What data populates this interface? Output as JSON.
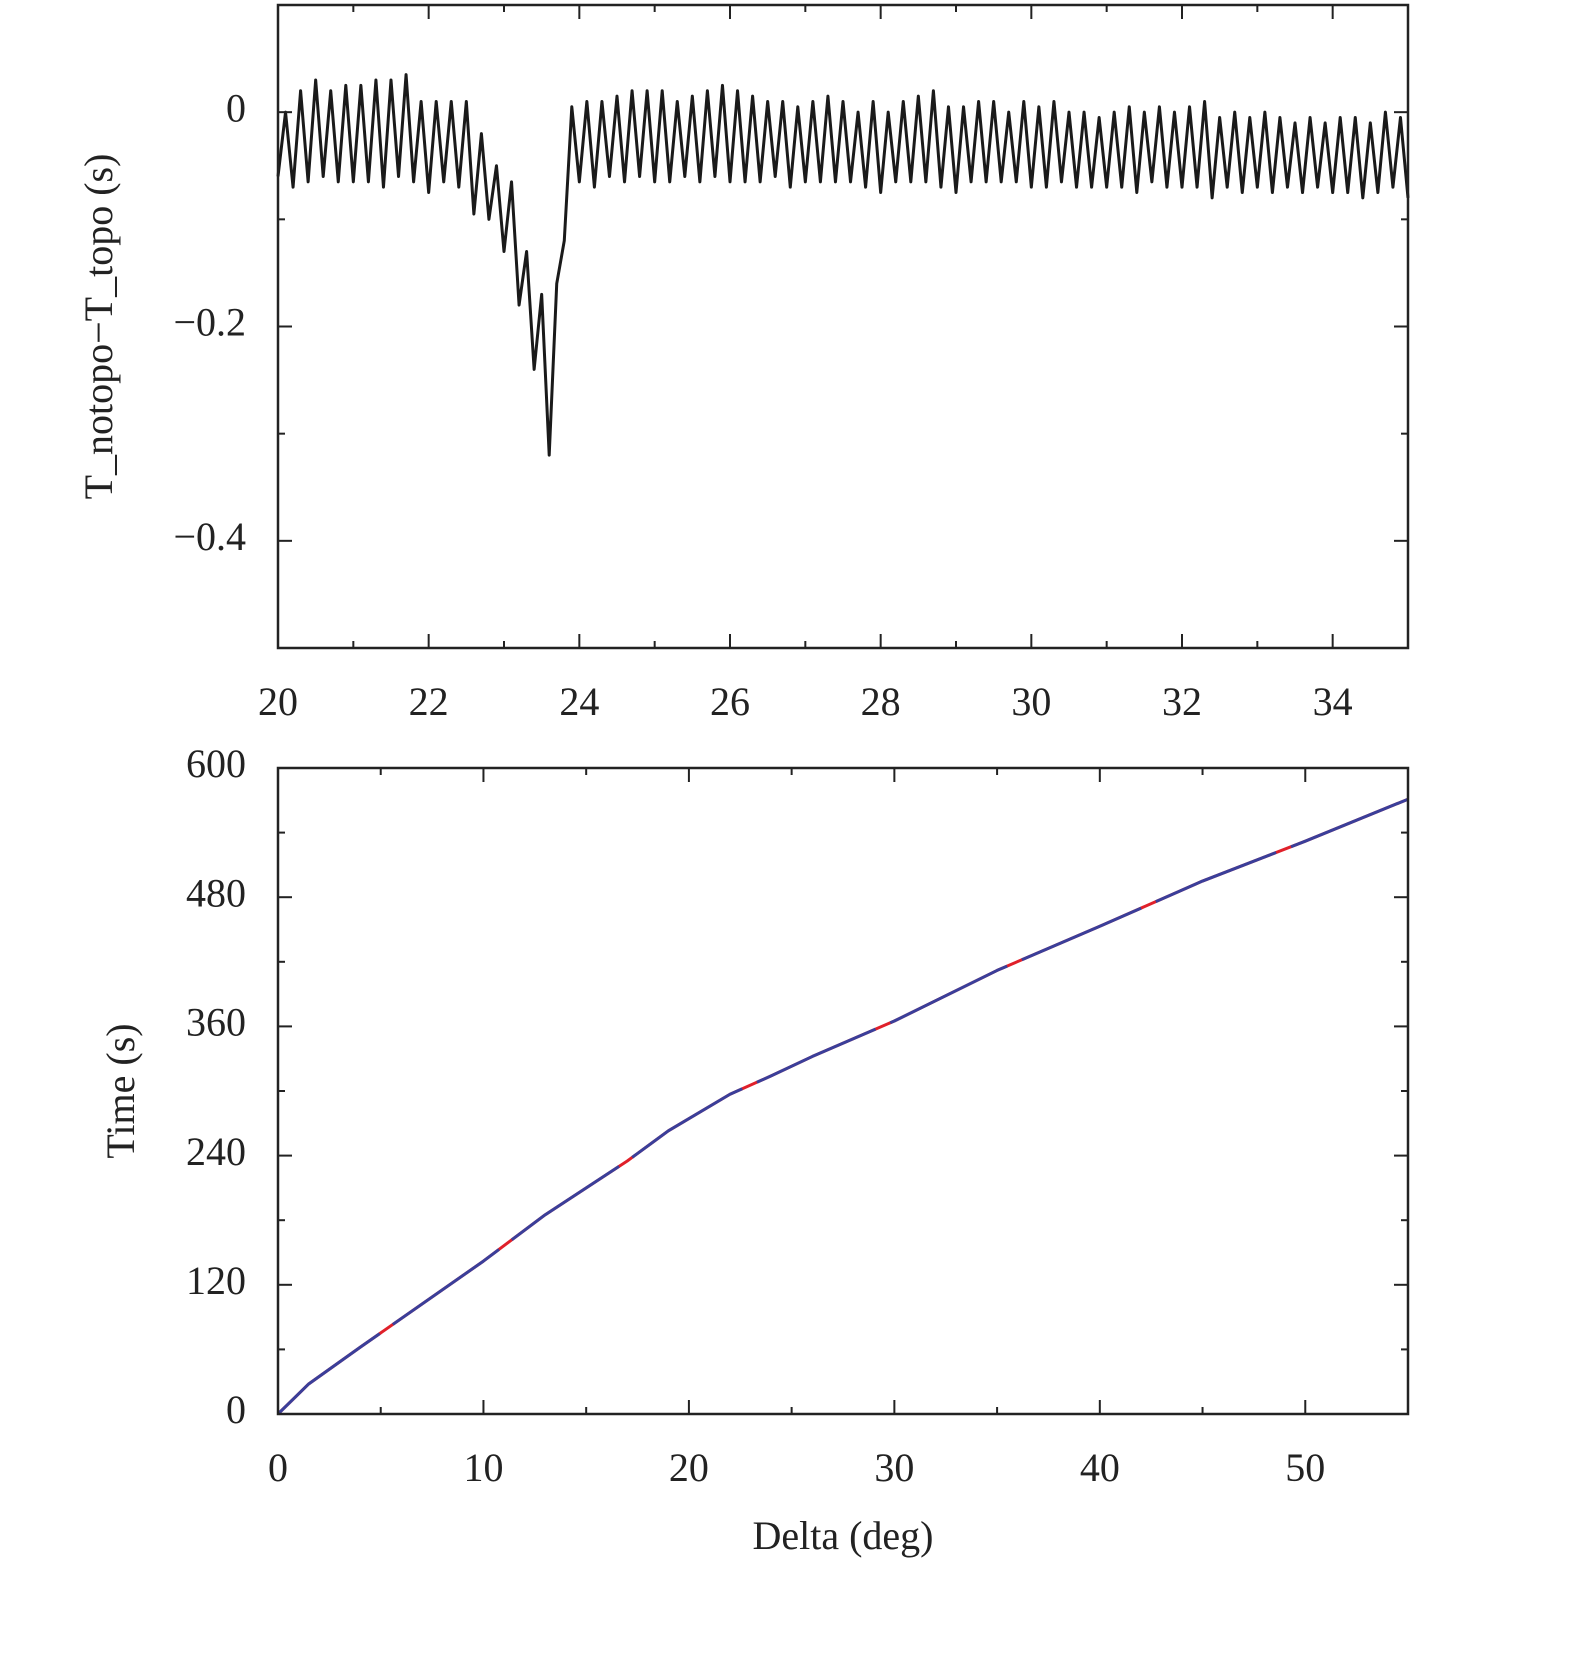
{
  "chart_data": [
    {
      "type": "line",
      "ylabel": "T_notopo−T_topo (s)",
      "xlim": [
        20,
        35
      ],
      "xticks": [
        20,
        22,
        24,
        26,
        28,
        30,
        32,
        34
      ],
      "ylim": [
        -0.5,
        0.1
      ],
      "yticks": [
        {
          "value": -0.4,
          "label": "−0.4"
        },
        {
          "value": -0.2,
          "label": "−0.2"
        },
        0
      ],
      "x": [
        20,
        20.1,
        20.2,
        20.3,
        20.4,
        20.5,
        20.6,
        20.7,
        20.8,
        20.9,
        21,
        21.1,
        21.2,
        21.3,
        21.4,
        21.5,
        21.6,
        21.7,
        21.8,
        21.9,
        22,
        22.1,
        22.2,
        22.3,
        22.4,
        22.5,
        22.6,
        22.7,
        22.8,
        22.9,
        23,
        23.1,
        23.2,
        23.3,
        23.4,
        23.5,
        23.6,
        23.7,
        23.8,
        23.9,
        24,
        24.1,
        24.2,
        24.3,
        24.4,
        24.5,
        24.6,
        24.7,
        24.8,
        24.9,
        25,
        25.1,
        25.2,
        25.3,
        25.4,
        25.5,
        25.6,
        25.7,
        25.8,
        25.9,
        26,
        26.1,
        26.2,
        26.3,
        26.4,
        26.5,
        26.6,
        26.7,
        26.8,
        26.9,
        27,
        27.1,
        27.2,
        27.3,
        27.4,
        27.5,
        27.6,
        27.7,
        27.8,
        27.9,
        28,
        28.1,
        28.2,
        28.3,
        28.4,
        28.5,
        28.6,
        28.7,
        28.8,
        28.9,
        29,
        29.1,
        29.2,
        29.3,
        29.4,
        29.5,
        29.6,
        29.7,
        29.8,
        29.9,
        30,
        30.1,
        30.2,
        30.3,
        30.4,
        30.5,
        30.6,
        30.7,
        30.8,
        30.9,
        31,
        31.1,
        31.2,
        31.3,
        31.4,
        31.5,
        31.6,
        31.7,
        31.8,
        31.9,
        32,
        32.1,
        32.2,
        32.3,
        32.4,
        32.5,
        32.6,
        32.7,
        32.8,
        32.9,
        33,
        33.1,
        33.2,
        33.3,
        33.4,
        33.5,
        33.6,
        33.7,
        33.8,
        33.9,
        34,
        34.1,
        34.2,
        34.3,
        34.4,
        34.5,
        34.6,
        34.7,
        34.8,
        34.9,
        35
      ],
      "series": [
        {
          "color": "#1a1a1a",
          "values": [
            -0.06,
            0.0,
            -0.07,
            0.02,
            -0.065,
            0.03,
            -0.06,
            0.02,
            -0.065,
            0.025,
            -0.065,
            0.025,
            -0.065,
            0.03,
            -0.07,
            0.03,
            -0.06,
            0.035,
            -0.065,
            0.01,
            -0.075,
            0.01,
            -0.065,
            0.01,
            -0.07,
            0.01,
            -0.095,
            -0.02,
            -0.1,
            -0.05,
            -0.13,
            -0.065,
            -0.18,
            -0.13,
            -0.24,
            -0.17,
            -0.32,
            -0.16,
            -0.12,
            0.005,
            -0.065,
            0.01,
            -0.07,
            0.01,
            -0.06,
            0.015,
            -0.065,
            0.02,
            -0.06,
            0.02,
            -0.065,
            0.02,
            -0.065,
            0.01,
            -0.06,
            0.015,
            -0.065,
            0.02,
            -0.06,
            0.025,
            -0.065,
            0.02,
            -0.065,
            0.015,
            -0.065,
            0.01,
            -0.06,
            0.01,
            -0.07,
            0.005,
            -0.065,
            0.01,
            -0.065,
            0.015,
            -0.065,
            0.01,
            -0.065,
            0.0,
            -0.07,
            0.01,
            -0.075,
            0.0,
            -0.065,
            0.01,
            -0.065,
            0.015,
            -0.065,
            0.02,
            -0.07,
            0.005,
            -0.075,
            0.005,
            -0.065,
            0.01,
            -0.065,
            0.01,
            -0.065,
            0.0,
            -0.065,
            0.01,
            -0.07,
            0.005,
            -0.07,
            0.01,
            -0.065,
            0.0,
            -0.07,
            0.0,
            -0.07,
            -0.005,
            -0.07,
            0.0,
            -0.07,
            0.005,
            -0.075,
            0.0,
            -0.065,
            0.005,
            -0.07,
            0.0,
            -0.07,
            0.005,
            -0.07,
            0.01,
            -0.08,
            -0.005,
            -0.07,
            0.0,
            -0.075,
            -0.005,
            -0.07,
            0.0,
            -0.075,
            -0.005,
            -0.07,
            -0.01,
            -0.075,
            -0.005,
            -0.07,
            -0.01,
            -0.075,
            -0.005,
            -0.075,
            -0.005,
            -0.08,
            -0.01,
            -0.075,
            0.0,
            -0.07,
            -0.005,
            -0.08
          ]
        }
      ]
    },
    {
      "type": "line",
      "xlabel": "Delta (deg)",
      "ylabel": "Time (s)",
      "xlim": [
        0,
        55
      ],
      "xticks": [
        0,
        10,
        20,
        30,
        40,
        50
      ],
      "ylim": [
        0,
        600
      ],
      "yticks": [
        0,
        120,
        240,
        360,
        480,
        600
      ],
      "x": [
        0,
        1.5,
        4,
        10,
        13,
        17,
        19,
        22,
        24,
        26,
        30,
        35,
        40,
        45,
        50,
        55
      ],
      "series": [
        {
          "color": "#e0202a",
          "values": [
            0,
            28,
            62,
            142,
            185,
            235,
            263,
            297,
            314,
            332,
            365,
            412,
            453,
            495,
            532,
            571
          ]
        },
        {
          "color": "#3a3f9a",
          "values": [
            0,
            28,
            62,
            142,
            185,
            235,
            263,
            297,
            314,
            332,
            365,
            412,
            453,
            495,
            532,
            571
          ]
        }
      ]
    }
  ]
}
